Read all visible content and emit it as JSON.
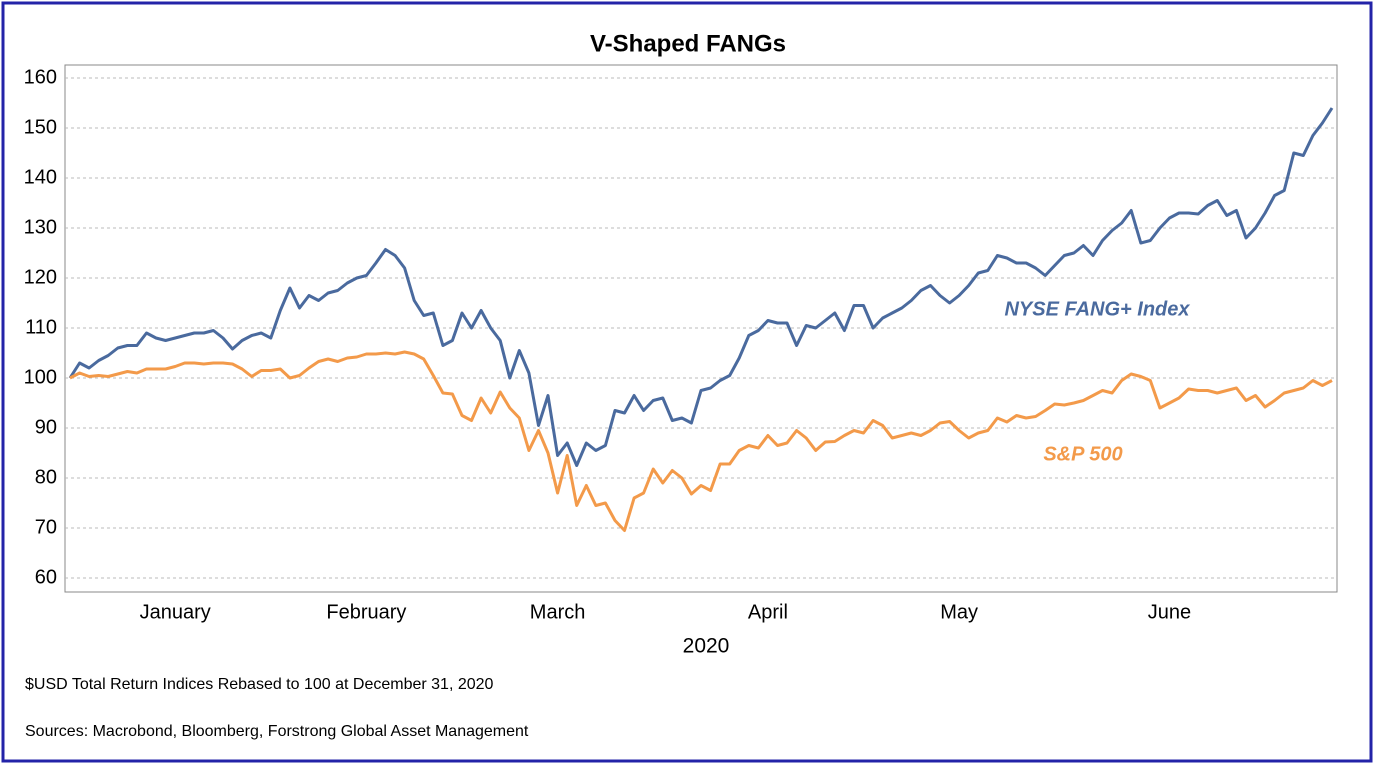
{
  "chart_data": {
    "type": "line",
    "title": "V-Shaped FANGs",
    "x_label": "2020",
    "notes": [
      "$USD Total Return Indices Rebased to 100 at December 31, 2020",
      "Sources: Macrobond, Bloomberg, Forstrong Global Asset Management"
    ],
    "categories": [
      null,
      null,
      null,
      null,
      null,
      null,
      null,
      null,
      null,
      null,
      null,
      "January",
      null,
      null,
      null,
      null,
      null,
      null,
      null,
      null,
      null,
      null,
      null,
      null,
      null,
      null,
      null,
      null,
      null,
      null,
      null,
      "February",
      null,
      null,
      null,
      null,
      null,
      null,
      null,
      null,
      null,
      null,
      null,
      null,
      null,
      null,
      null,
      null,
      null,
      null,
      null,
      "March",
      null,
      null,
      null,
      null,
      null,
      null,
      null,
      null,
      null,
      null,
      null,
      null,
      null,
      null,
      null,
      null,
      null,
      null,
      null,
      null,
      null,
      "April",
      null,
      null,
      null,
      null,
      null,
      null,
      null,
      null,
      null,
      null,
      null,
      null,
      null,
      null,
      null,
      null,
      null,
      null,
      null,
      "May",
      null,
      null,
      null,
      null,
      null,
      null,
      null,
      null,
      null,
      null,
      null,
      null,
      null,
      null,
      null,
      null,
      null,
      null,
      null,
      null,
      null,
      "June",
      null,
      null,
      null,
      null,
      null,
      null,
      null,
      null,
      null,
      null,
      null,
      null,
      null,
      null,
      null,
      null,
      null
    ],
    "series": [
      {
        "name": "NYSE FANG+ Index",
        "color": "#4a6a9e",
        "values": [
          100,
          103,
          102,
          103.5,
          104.5,
          106,
          106.5,
          106.5,
          109,
          108,
          107.5,
          108,
          108.5,
          109,
          109,
          109.5,
          108,
          105.8,
          107.5,
          108.5,
          109,
          108,
          113.5,
          118,
          114,
          116.5,
          115.5,
          117,
          117.5,
          119,
          120,
          120.5,
          123,
          125.7,
          124.5,
          122,
          115.5,
          112.5,
          113,
          106.5,
          107.5,
          113,
          110,
          113.5,
          110,
          107.5,
          100,
          105.5,
          101,
          90.5,
          96.5,
          84.5,
          87,
          82.5,
          87,
          85.5,
          86.5,
          93.5,
          93,
          96.5,
          93.5,
          95.5,
          96,
          91.5,
          92,
          91,
          97.5,
          98,
          99.5,
          100.5,
          104,
          108.5,
          109.5,
          111.5,
          111,
          111,
          106.5,
          110.5,
          110,
          111.5,
          113,
          109.5,
          114.5,
          114.5,
          110,
          112,
          113,
          114,
          115.5,
          117.5,
          118.5,
          116.5,
          115,
          116.5,
          118.5,
          121,
          121.5,
          124.5,
          124,
          123,
          123,
          122,
          120.5,
          122.5,
          124.5,
          125,
          126.5,
          124.5,
          127.5,
          129.5,
          131,
          133.5,
          127,
          127.5,
          130,
          132,
          133,
          133,
          132.8,
          134.5,
          135.5,
          132.5,
          133.5,
          128,
          130,
          133,
          136.5,
          137.5,
          145,
          144.5,
          148.5,
          151,
          154
        ]
      },
      {
        "name": "S&P 500",
        "color": "#f39a4a",
        "values": [
          100,
          101,
          100.3,
          100.5,
          100.3,
          100.8,
          101.3,
          101,
          101.8,
          101.8,
          101.8,
          102.3,
          103,
          103,
          102.8,
          103,
          103,
          102.8,
          101.8,
          100.3,
          101.5,
          101.5,
          101.8,
          100,
          100.5,
          102,
          103.3,
          103.8,
          103.3,
          104,
          104.2,
          104.8,
          104.8,
          105,
          104.8,
          105.2,
          104.8,
          103.8,
          100.5,
          97,
          96.8,
          92.5,
          91.5,
          96,
          93,
          97.2,
          94,
          92,
          85.5,
          89.5,
          85,
          77,
          84.5,
          74.5,
          78.5,
          74.5,
          75,
          71.5,
          69.5,
          76,
          77,
          81.8,
          79,
          81.5,
          80,
          76.8,
          78.5,
          77.5,
          82.8,
          82.8,
          85.5,
          86.5,
          86,
          88.5,
          86.5,
          87,
          89.5,
          88,
          85.5,
          87.2,
          87.3,
          88.5,
          89.5,
          89,
          91.5,
          90.5,
          88,
          88.5,
          89,
          88.5,
          89.5,
          91,
          91.3,
          89.5,
          88,
          89,
          89.5,
          92,
          91.2,
          92.5,
          92,
          92.3,
          93.5,
          94.8,
          94.6,
          95,
          95.5,
          96.5,
          97.5,
          97,
          99.5,
          100.8,
          100.3,
          99.5,
          94,
          95,
          96,
          97.8,
          97.5,
          97.5,
          97,
          97.5,
          98,
          95.5,
          96.5,
          94.2,
          95.5,
          97,
          97.5,
          98,
          99.5,
          98.5,
          99.5
        ]
      }
    ],
    "ylim": [
      57.2,
      162.6
    ],
    "yticks": [
      60,
      70,
      80,
      90,
      100,
      110,
      120,
      130,
      140,
      150,
      160
    ],
    "grid": true
  }
}
